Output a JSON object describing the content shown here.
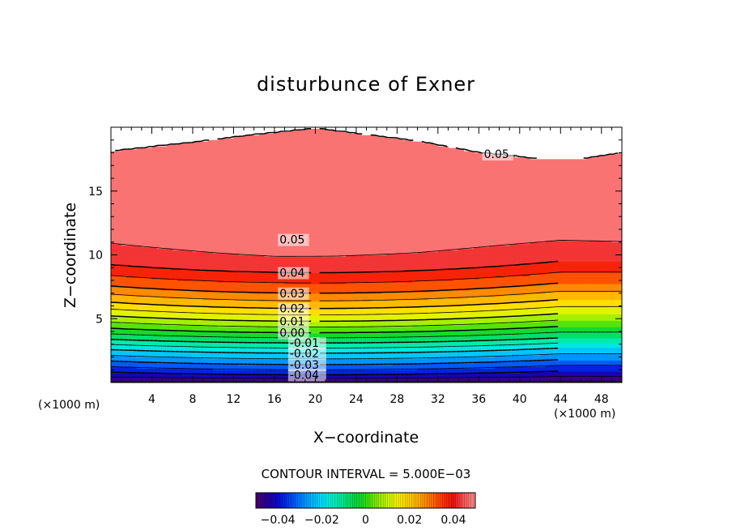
{
  "chart_data": {
    "type": "contour",
    "title": "disturbunce of Exner",
    "xlabel": "X−coordinate",
    "ylabel": "Z−coordinate",
    "x_unit": "(×1000 m)",
    "y_unit": "(×1000 m)",
    "xlim": [
      0,
      50
    ],
    "ylim": [
      0,
      20
    ],
    "x_ticks": [
      4,
      8,
      12,
      16,
      20,
      24,
      28,
      32,
      36,
      40,
      44,
      48
    ],
    "y_ticks": [
      5,
      10,
      15
    ],
    "contour_interval_text": "CONTOUR INTERVAL = 5.000E−03",
    "levels": [
      -0.05,
      -0.045,
      -0.04,
      -0.035,
      -0.03,
      -0.025,
      -0.02,
      -0.015,
      -0.01,
      -0.005,
      0,
      0.005,
      0.01,
      0.015,
      0.02,
      0.025,
      0.03,
      0.035,
      0.04,
      0.045,
      0.05
    ],
    "line_labels": [
      {
        "text": "0.05",
        "x": 16.5,
        "z": 11.2
      },
      {
        "text": "0.04",
        "x": 16.5,
        "z": 8.6
      },
      {
        "text": "0.03",
        "x": 16.5,
        "z": 7.0
      },
      {
        "text": "0.02",
        "x": 16.5,
        "z": 5.8
      },
      {
        "text": "0.01",
        "x": 16.5,
        "z": 4.8
      },
      {
        "text": "0.00",
        "x": 16.5,
        "z": 3.9
      },
      {
        "text": "-0.01",
        "x": 17.5,
        "z": 3.1
      },
      {
        "text": "-0.02",
        "x": 17.5,
        "z": 2.3
      },
      {
        "text": "-0.03",
        "x": 17.5,
        "z": 1.4
      },
      {
        "text": "-0.04",
        "x": 17.5,
        "z": 0.6
      },
      {
        "text": "0.05",
        "x": 36.5,
        "z": 17.9
      }
    ],
    "colorbar": {
      "range": [
        -0.05,
        0.05
      ],
      "tick_values": [
        -0.04,
        -0.02,
        0,
        0.02,
        0.04
      ],
      "tick_labels": [
        "−0.04",
        "−0.02",
        "0",
        "0.02",
        "0.04"
      ]
    }
  }
}
